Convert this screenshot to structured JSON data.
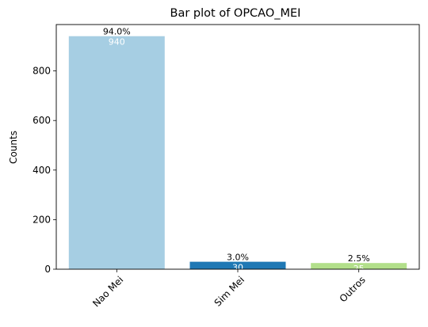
{
  "chart_data": {
    "type": "bar",
    "title": "Bar plot of OPCAO_MEI",
    "xlabel": "",
    "ylabel": "Counts",
    "categories": [
      "Nao Mei",
      "Sim Mei",
      "Outros"
    ],
    "values": [
      940,
      30,
      25
    ],
    "value_labels": [
      "940",
      "30",
      "25"
    ],
    "percent_labels": [
      "94.0%",
      "3.0%",
      "2.5%"
    ],
    "colors": [
      "#a6cee3",
      "#1f78b4",
      "#b2df8a"
    ],
    "yticks": [
      0,
      200,
      400,
      600,
      800
    ],
    "ylim": [
      0,
      987
    ],
    "grid": false,
    "legend": "none"
  }
}
